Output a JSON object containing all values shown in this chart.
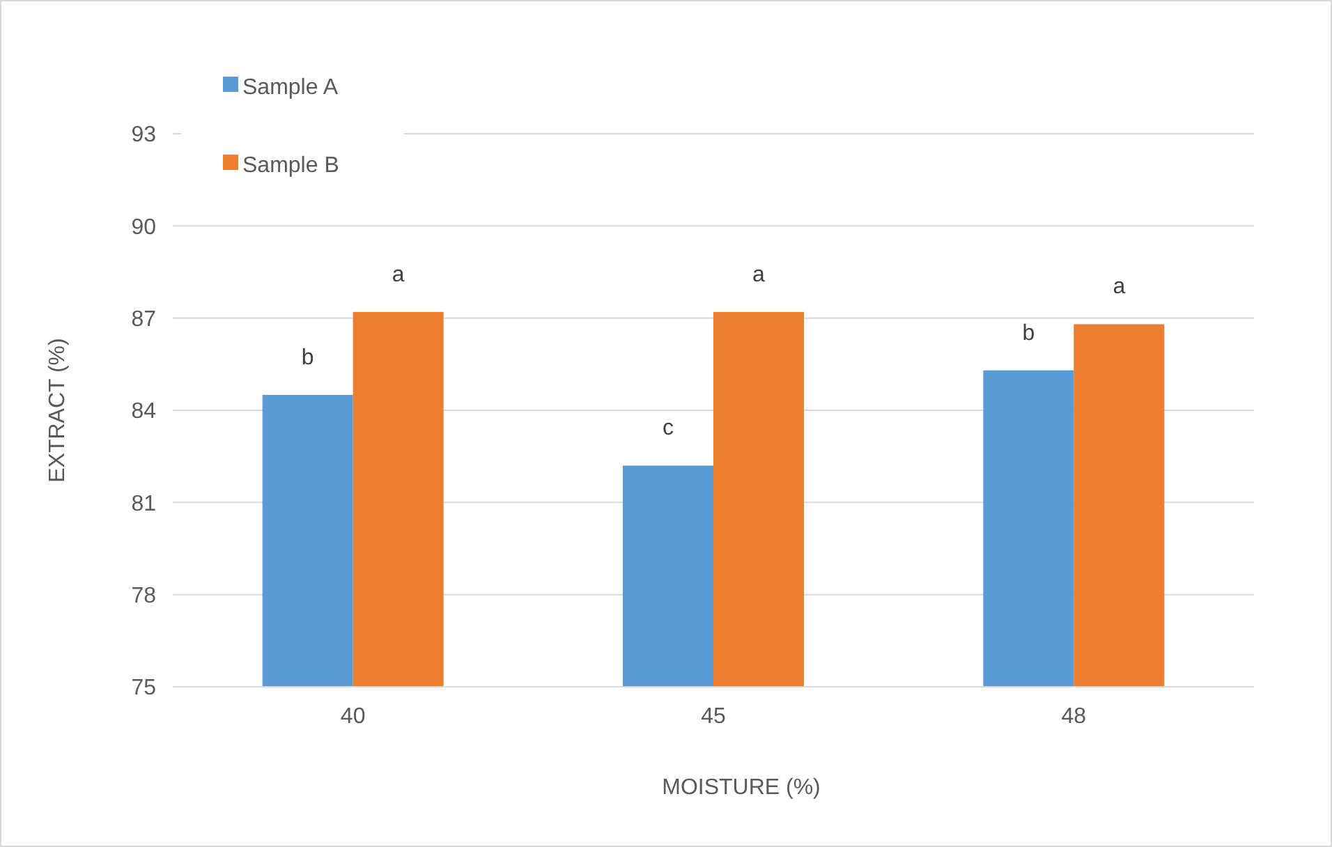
{
  "chart_data": {
    "type": "bar",
    "xlabel": "MOISTURE (%)",
    "ylabel": "EXTRACT (%)",
    "categories": [
      "40",
      "45",
      "48"
    ],
    "series": [
      {
        "name": "Sample A",
        "color": "#5b9bd5",
        "values": [
          84.5,
          82.2,
          85.3
        ]
      },
      {
        "name": "Sample B",
        "color": "#ed7d31",
        "values": [
          87.2,
          87.2,
          86.8
        ]
      }
    ],
    "ylim": [
      75,
      93
    ],
    "yticks": [
      75,
      78,
      81,
      84,
      87,
      90,
      93
    ],
    "grid": "y",
    "legend": "top left",
    "annotations": [
      {
        "text": "b",
        "x": "40",
        "y": 84.5
      },
      {
        "text": "a",
        "x": "40",
        "y": 87.2
      },
      {
        "text": "c",
        "x": "45",
        "y": 82.2
      },
      {
        "text": "a",
        "x": "45",
        "y": 87.2
      },
      {
        "text": "b",
        "x": "48",
        "y": 85.3
      },
      {
        "text": "a",
        "x": "48",
        "y": 86.8
      }
    ]
  }
}
